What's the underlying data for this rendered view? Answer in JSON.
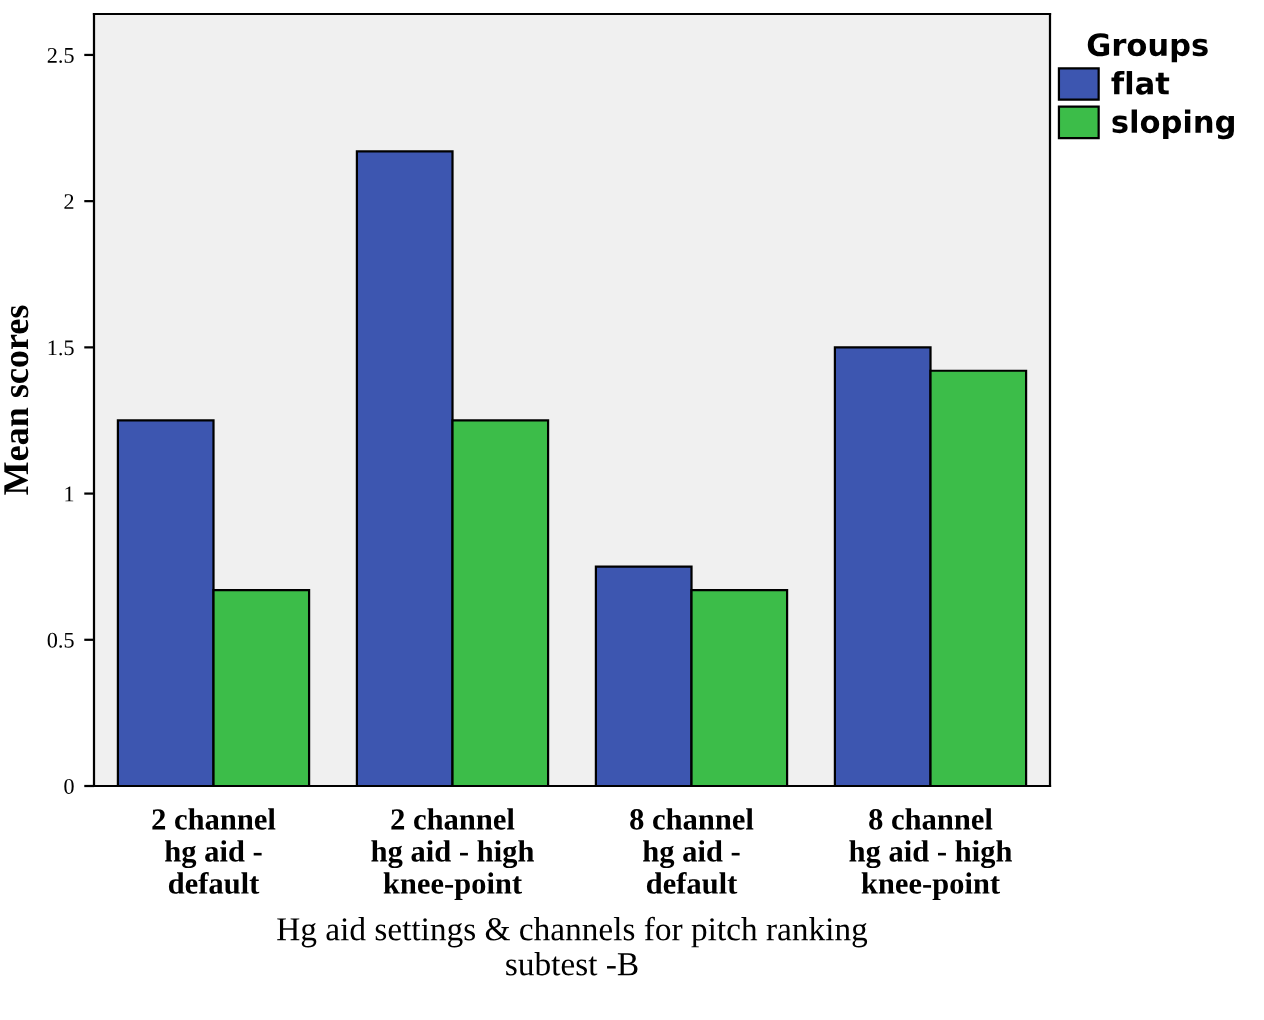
{
  "chart_data": {
    "type": "bar",
    "xlabel": "Hg aid settings & channels for pitch ranking\nsubtest -B",
    "ylabel": "Mean scores",
    "legend_title": "Groups",
    "categories": [
      "2 channel\nhg aid -\ndefault",
      "2 channel\nhg aid - high\nknee-point",
      "8 channel\nhg aid -\ndefault",
      "8 channel\nhg aid - high\nknee-point"
    ],
    "series": [
      {
        "name": "flat",
        "color": "#3d56b0",
        "values": [
          1.25,
          2.17,
          0.75,
          1.5
        ]
      },
      {
        "name": "sloping",
        "color": "#3cbd49",
        "values": [
          0.67,
          1.25,
          0.67,
          1.42
        ]
      }
    ],
    "ylim": [
      0,
      2.64
    ],
    "yticks": [
      0,
      0.5,
      1,
      1.5,
      2,
      2.5
    ],
    "grid": false,
    "legend": "top right"
  }
}
